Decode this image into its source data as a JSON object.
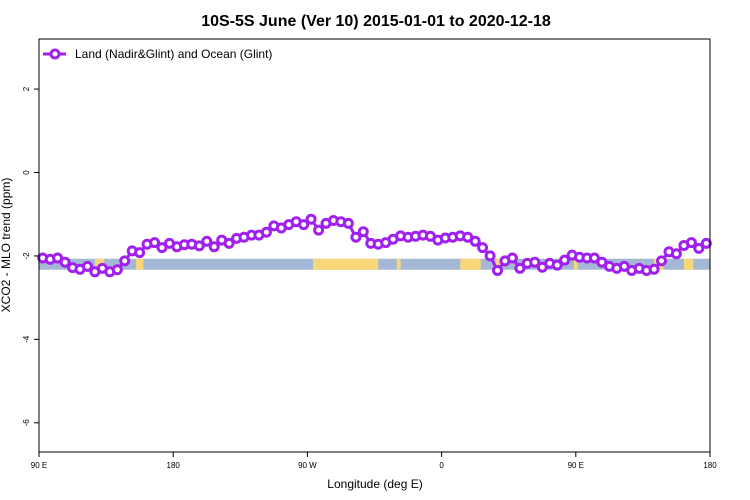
{
  "chart_data": {
    "type": "line",
    "title": "10S-5S June (Ver 10)   2015-01-01 to 2020-12-18",
    "xlabel": "Longitude (deg E)",
    "ylabel": "XCO2 - MLO trend (ppm)",
    "xlim": [
      90,
      450
    ],
    "ylim": [
      -6.7,
      3.2
    ],
    "x_ticks": [
      {
        "value": 90,
        "label": "90 E"
      },
      {
        "value": 162,
        "label": "180"
      },
      {
        "value": 234,
        "label": "90 W"
      },
      {
        "value": 306,
        "label": "0"
      },
      {
        "value": 378,
        "label": "90 E"
      },
      {
        "value": 450,
        "label": "180"
      }
    ],
    "y_ticks": [
      {
        "value": 2,
        "label": "2"
      },
      {
        "value": 0,
        "label": "0"
      },
      {
        "value": -2,
        "label": "-2"
      },
      {
        "value": -4,
        "label": "-4"
      },
      {
        "value": -6,
        "label": "-6"
      }
    ],
    "legend": {
      "placement": "top-left"
    },
    "series": [
      {
        "name": "Land (Nadir&Glint) and Ocean (Glint)",
        "color": "#a020f0",
        "x": [
          92,
          96,
          100,
          104,
          108,
          112,
          116,
          120,
          124,
          128,
          132,
          136,
          140,
          144,
          148,
          152,
          156,
          160,
          164,
          168,
          172,
          176,
          180,
          184,
          188,
          192,
          196,
          200,
          204,
          208,
          212,
          216,
          220,
          224,
          228,
          232,
          236,
          240,
          244,
          248,
          252,
          256,
          260,
          264,
          268,
          272,
          276,
          280,
          284,
          288,
          292,
          296,
          300,
          304,
          308,
          312,
          316,
          320,
          324,
          328,
          332,
          336,
          340,
          344,
          348,
          352,
          356,
          360,
          364,
          368,
          372,
          376,
          380,
          384,
          388,
          392,
          396,
          400,
          404,
          408,
          412,
          416,
          420,
          424,
          428,
          432,
          436,
          440,
          444,
          448
        ],
        "y": [
          -2.05,
          -2.08,
          -2.05,
          -2.15,
          -2.28,
          -2.32,
          -2.25,
          -2.38,
          -2.3,
          -2.38,
          -2.33,
          -2.12,
          -1.88,
          -1.92,
          -1.72,
          -1.68,
          -1.8,
          -1.7,
          -1.78,
          -1.73,
          -1.72,
          -1.76,
          -1.65,
          -1.78,
          -1.62,
          -1.7,
          -1.58,
          -1.55,
          -1.5,
          -1.5,
          -1.43,
          -1.28,
          -1.33,
          -1.25,
          -1.18,
          -1.25,
          -1.12,
          -1.38,
          -1.22,
          -1.15,
          -1.18,
          -1.22,
          -1.55,
          -1.42,
          -1.7,
          -1.72,
          -1.68,
          -1.6,
          -1.52,
          -1.55,
          -1.53,
          -1.5,
          -1.53,
          -1.62,
          -1.57,
          -1.55,
          -1.52,
          -1.55,
          -1.65,
          -1.8,
          -2.0,
          -2.35,
          -2.12,
          -2.05,
          -2.3,
          -2.18,
          -2.15,
          -2.27,
          -2.18,
          -2.22,
          -2.1,
          -1.98,
          -2.03,
          -2.05,
          -2.05,
          -2.15,
          -2.25,
          -2.3,
          -2.25,
          -2.35,
          -2.3,
          -2.35,
          -2.32,
          -2.12,
          -1.9,
          -1.95,
          -1.75,
          -1.68,
          -1.82,
          -1.7
        ]
      }
    ],
    "surface_bar": {
      "y": -2.2,
      "colors": {
        "ocean": "#a4b8d6",
        "land": "#f8d77a"
      },
      "land_ranges": [
        [
          120,
          125
        ],
        [
          142,
          146
        ],
        [
          237,
          240
        ],
        [
          240,
          272
        ],
        [
          282,
          284
        ],
        [
          316,
          327
        ],
        [
          335,
          338
        ],
        [
          377,
          379
        ],
        [
          420,
          425
        ],
        [
          436,
          441
        ]
      ]
    }
  }
}
